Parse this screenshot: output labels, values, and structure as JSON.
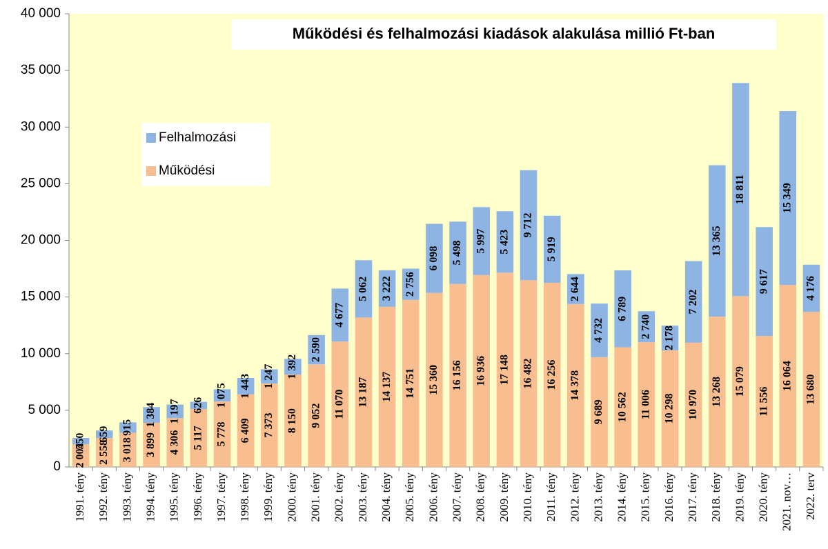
{
  "chart_data": {
    "type": "stacked-bar",
    "title": "Működési és felhalmozási kiadások alakulása millió Ft-ban",
    "categories": [
      "1991. tény",
      "1992. tény",
      "1993. tény",
      "1994. tény",
      "1995. tény",
      "1996. tény",
      "1997. tény",
      "1998. tény",
      "1999. tény",
      "2000. tény",
      "2001. tény",
      "2002. tény",
      "2003. tény",
      "2004. tény",
      "2005. tény",
      "2006. tény",
      "2007. tény",
      "2008. tény",
      "2009. tény",
      "2010. tény",
      "2011. tény",
      "2012. tény",
      "2013. tény",
      "2014.  tény",
      "2015. tény",
      "2016. tény",
      "2017. tény",
      "2018. tény",
      "2019. tény",
      "2020. tény",
      "2021. nov…",
      "2022. terv"
    ],
    "series": [
      {
        "name": "Működési",
        "color": "#f9be8f",
        "values": [
          2004,
          2558,
          3018,
          3899,
          4306,
          5117,
          5778,
          6409,
          7373,
          8150,
          9052,
          11070,
          13187,
          14137,
          14751,
          15360,
          16156,
          16936,
          17148,
          16482,
          16256,
          14378,
          9689,
          10562,
          11006,
          10298,
          10970,
          13268,
          15079,
          11556,
          16064,
          13680
        ],
        "value_labels": [
          "2 004",
          "2 558",
          "3 018",
          "3 899",
          "4 306",
          "5 117",
          "5 778",
          "6 409",
          "7 373",
          "8 150",
          "9 052",
          "11 070",
          "13 187",
          "14 137",
          "14 751",
          "15 360",
          "16 156",
          "16 936",
          "17 148",
          "16 482",
          "16 256",
          "14 378",
          "9 689",
          "10 562",
          "11 006",
          "10 298",
          "10 970",
          "13 268",
          "15 079",
          "11 556",
          "16 064",
          "13 680"
        ]
      },
      {
        "name": "Felhalmozási",
        "color": "#8eb4e3",
        "values": [
          550,
          659,
          915,
          1384,
          1197,
          626,
          1075,
          1443,
          1247,
          1392,
          2590,
          4677,
          5062,
          3222,
          2756,
          6098,
          5498,
          5997,
          5423,
          9712,
          5919,
          2644,
          4732,
          6789,
          2740,
          2178,
          7202,
          13365,
          18811,
          9617,
          15349,
          4176
        ],
        "value_labels": [
          "550",
          "659",
          "915",
          "1 384",
          "1 197",
          "626",
          "1 075",
          "1 443",
          "1 247",
          "1 392",
          "2 590",
          "4 677",
          "5 062",
          "3 222",
          "2 756",
          "6 098",
          "5 498",
          "5 997",
          "5 423",
          "9 712",
          "5 919",
          "2 644",
          "4 732",
          "6 789",
          "2 740",
          "2 178",
          "7 202",
          "13 365",
          "18 811",
          "9 617",
          "15 349",
          "4 176"
        ]
      }
    ],
    "ylim": [
      0,
      40000
    ],
    "yticks": [
      0,
      {
        "value": 5000,
        "label": "5 000"
      },
      {
        "value": 10000,
        "label": "10 000"
      },
      {
        "value": 15000,
        "label": "15 000"
      },
      {
        "value": 20000,
        "label": "20 000"
      },
      {
        "value": 25000,
        "label": "25 000"
      },
      {
        "value": 30000,
        "label": "30 000"
      },
      {
        "value": 35000,
        "label": "35 000"
      },
      {
        "value": 40000,
        "label": "40 000"
      }
    ],
    "background": "#ffffcc"
  }
}
